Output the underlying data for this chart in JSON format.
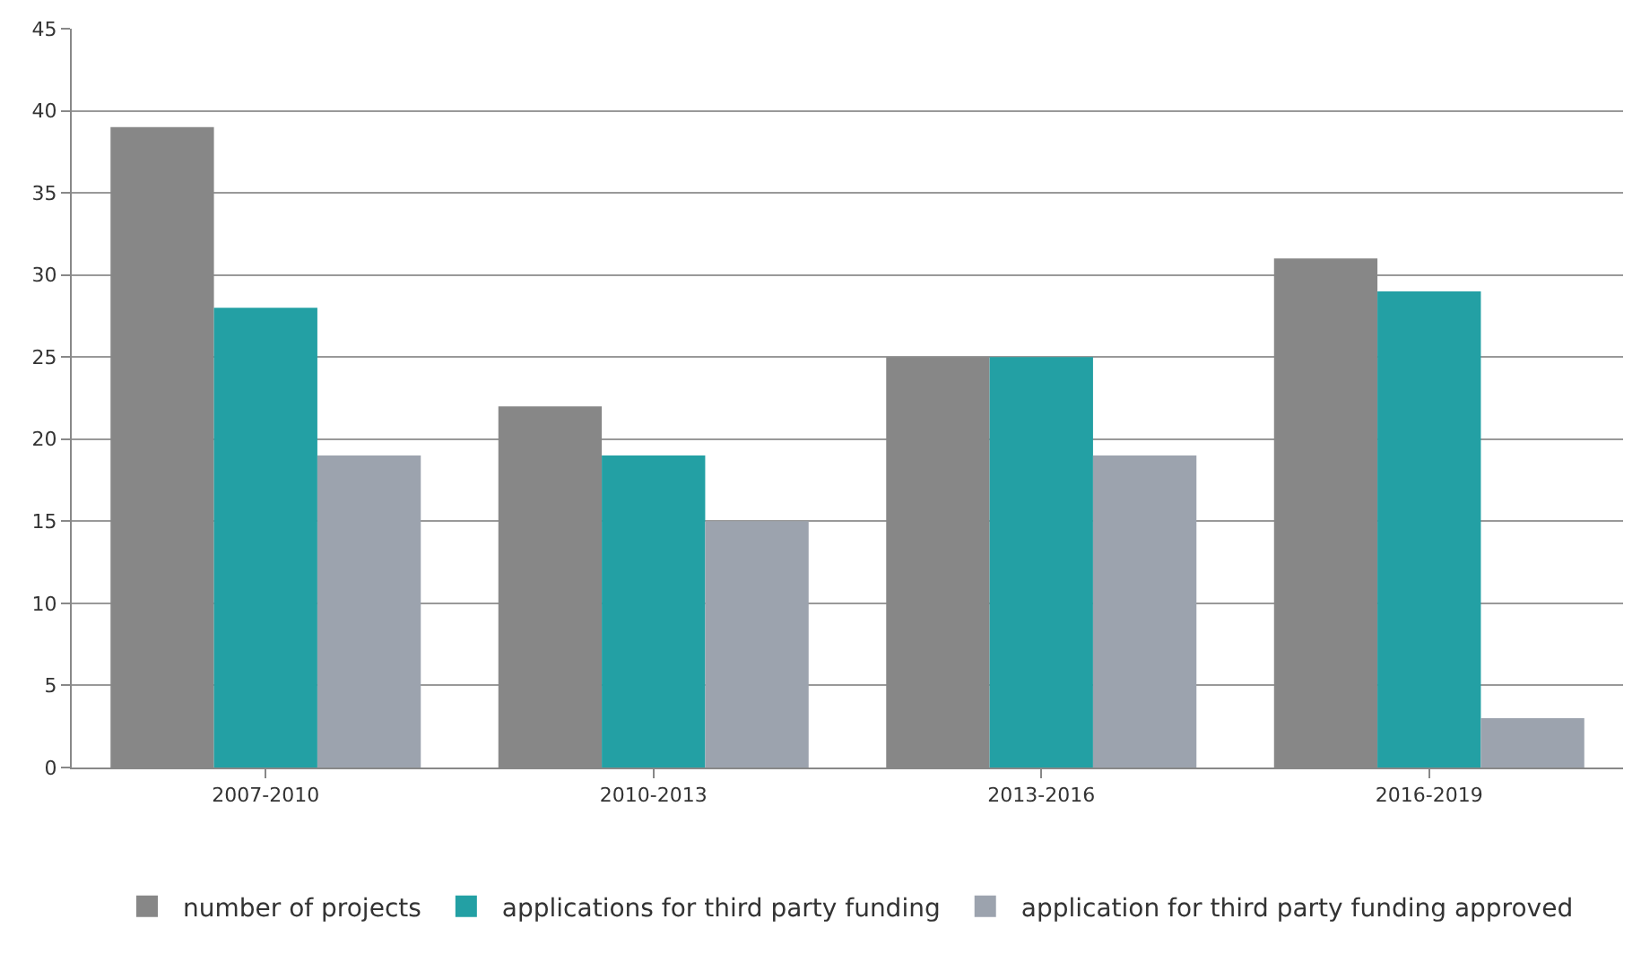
{
  "chart_data": {
    "type": "bar",
    "categories": [
      "2007-2010",
      "2010-2013",
      "2013-2016",
      "2016-2019"
    ],
    "series": [
      {
        "name": "number of projects",
        "color": "#878787",
        "values": [
          39,
          22,
          25,
          31
        ]
      },
      {
        "name": "applications for third party funding",
        "color": "#23a0a4",
        "values": [
          28,
          19,
          25,
          29
        ]
      },
      {
        "name": "application for third party funding approved",
        "color": "#9ca3ae",
        "values": [
          19,
          15,
          19,
          3
        ]
      }
    ],
    "ylim": [
      0,
      45
    ],
    "yticks": [
      0,
      5,
      10,
      15,
      20,
      25,
      30,
      35,
      40,
      45
    ],
    "grid": "y",
    "legend": "bottom"
  }
}
